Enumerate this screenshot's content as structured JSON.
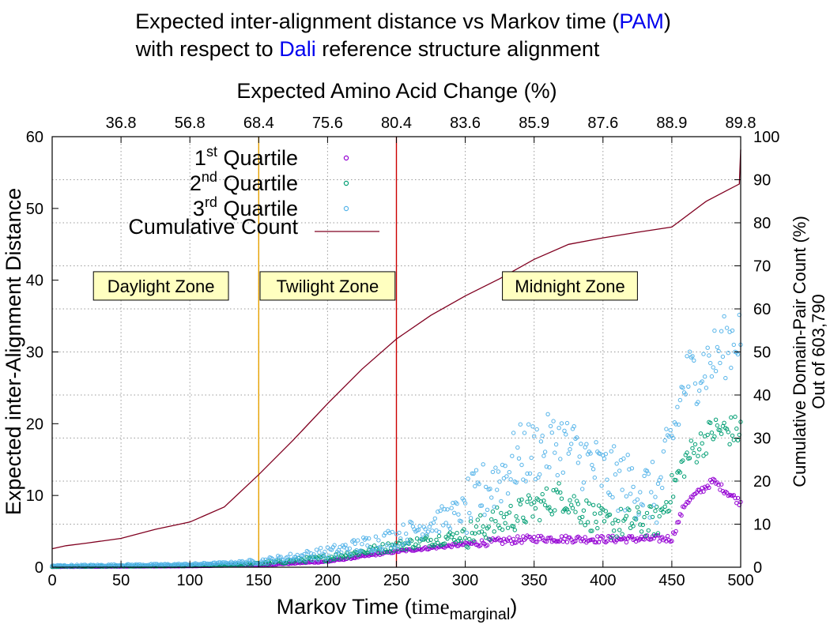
{
  "title": {
    "line1_pre": "Expected inter-alignment distance vs Markov time (",
    "line1_hl": "PAM",
    "line1_post": ")",
    "line2_hl": "Dali",
    "line2_post": " reference structure alignment",
    "line2_pre": "with respect to ",
    "highlight_color": "#0000ee"
  },
  "chart_data": {
    "type": "scatter",
    "xlabel_pre": "Markov Time (",
    "xlabel_time": "time",
    "xlabel_sub": "marginal",
    "xlabel_post": ")",
    "ylabel": "Expected inter-Alignment Distance",
    "y2label_line1": "Cumulative Domain-Pair Count (%)",
    "y2label_line2": "Out of 603,790",
    "x2label": "Expected Amino Acid Change (%)",
    "xlim": [
      0,
      500
    ],
    "ylim": [
      0,
      60
    ],
    "y2lim": [
      0,
      100
    ],
    "grid": true,
    "legend_position": "top-left",
    "x_ticks": [
      "0",
      "50",
      "100",
      "150",
      "200",
      "250",
      "300",
      "350",
      "400",
      "450",
      "500"
    ],
    "y_ticks": [
      "0",
      "10",
      "20",
      "30",
      "40",
      "50",
      "60"
    ],
    "y2_ticks": [
      "0",
      "10",
      "20",
      "30",
      "40",
      "50",
      "60",
      "70",
      "80",
      "90",
      "100"
    ],
    "x2_ticks": [
      {
        "x": 50,
        "label": "36.8"
      },
      {
        "x": 100,
        "label": "56.8"
      },
      {
        "x": 150,
        "label": "68.4"
      },
      {
        "x": 200,
        "label": "75.6"
      },
      {
        "x": 250,
        "label": "80.4"
      },
      {
        "x": 300,
        "label": "83.6"
      },
      {
        "x": 350,
        "label": "85.9"
      },
      {
        "x": 400,
        "label": "87.6"
      },
      {
        "x": 450,
        "label": "88.9"
      },
      {
        "x": 500,
        "label": "89.8"
      }
    ],
    "zone_lines": [
      {
        "x": 150,
        "color": "#e6a100"
      },
      {
        "x": 250,
        "color": "#cc0000"
      }
    ],
    "zones": [
      {
        "label": "Daylight Zone",
        "x": 79,
        "y": 39.2
      },
      {
        "label": "Twilight Zone",
        "x": 200,
        "y": 39.2
      },
      {
        "label": "Midnight Zone",
        "x": 376,
        "y": 39.2
      }
    ],
    "zone_box_color": "#ffffc0",
    "series": [
      {
        "name_base": "1",
        "name_sup": "st",
        "name_rest": " Quartile",
        "color": "#9400d3",
        "anchors": [
          [
            0,
            0.05
          ],
          [
            100,
            0.15
          ],
          [
            150,
            0.3
          ],
          [
            200,
            0.8
          ],
          [
            250,
            2.2
          ],
          [
            300,
            3.2
          ],
          [
            350,
            4.0
          ],
          [
            400,
            3.9
          ],
          [
            450,
            4.0
          ],
          [
            460,
            9.0
          ],
          [
            480,
            12.0
          ],
          [
            500,
            9.0
          ]
        ],
        "noise": 0.5
      },
      {
        "name_base": "2",
        "name_sup": "nd",
        "name_rest": " Quartile",
        "color": "#009e73",
        "anchors": [
          [
            0,
            0.1
          ],
          [
            100,
            0.2
          ],
          [
            150,
            0.5
          ],
          [
            200,
            1.3
          ],
          [
            250,
            3.0
          ],
          [
            300,
            4.5
          ],
          [
            340,
            7.5
          ],
          [
            370,
            10.0
          ],
          [
            400,
            6.0
          ],
          [
            440,
            6.5
          ],
          [
            460,
            15.0
          ],
          [
            480,
            19.0
          ],
          [
            500,
            19.0
          ]
        ],
        "noise": 2.2
      },
      {
        "name_base": "3",
        "name_sup": "rd",
        "name_rest": " Quartile",
        "color": "#56b4e9",
        "anchors": [
          [
            0,
            0.2
          ],
          [
            100,
            0.4
          ],
          [
            150,
            0.8
          ],
          [
            200,
            2.0
          ],
          [
            250,
            4.2
          ],
          [
            300,
            8.0
          ],
          [
            340,
            15.5
          ],
          [
            370,
            17.5
          ],
          [
            400,
            13.0
          ],
          [
            440,
            10.0
          ],
          [
            460,
            26.0
          ],
          [
            480,
            29.0
          ],
          [
            500,
            33.0
          ]
        ],
        "noise": 4.5
      }
    ],
    "cumulative": {
      "name": "Cumulative Count",
      "color": "#800020",
      "points": [
        [
          0,
          4.3
        ],
        [
          10,
          5.0
        ],
        [
          25,
          5.6
        ],
        [
          50,
          6.7
        ],
        [
          75,
          8.8
        ],
        [
          100,
          10.5
        ],
        [
          125,
          14.0
        ],
        [
          150,
          21.5
        ],
        [
          175,
          29.5
        ],
        [
          200,
          38.0
        ],
        [
          225,
          46.0
        ],
        [
          250,
          53.0
        ],
        [
          275,
          58.5
        ],
        [
          300,
          63.0
        ],
        [
          325,
          67.0
        ],
        [
          350,
          71.5
        ],
        [
          375,
          75.0
        ],
        [
          400,
          76.5
        ],
        [
          425,
          77.8
        ],
        [
          450,
          79.0
        ],
        [
          475,
          85.0
        ],
        [
          490,
          87.5
        ],
        [
          499,
          89.0
        ],
        [
          500,
          97.0
        ]
      ]
    }
  }
}
